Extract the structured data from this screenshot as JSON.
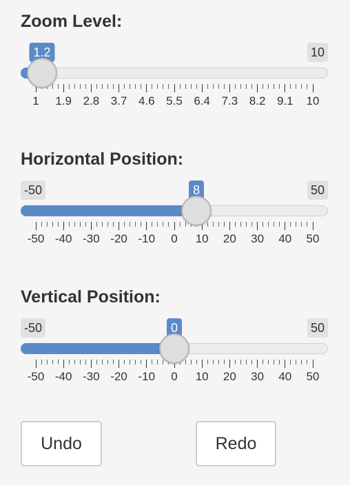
{
  "controls": [
    {
      "id": "zoom",
      "title": "Zoom Level:",
      "min": 1,
      "max": 10,
      "value": 1.2,
      "min_label": "",
      "max_label": "10",
      "value_label": "1.2",
      "ticks": [
        {
          "value": 1,
          "label": "1"
        },
        {
          "value": 1.9,
          "label": "1.9"
        },
        {
          "value": 2.8,
          "label": "2.8"
        },
        {
          "value": 3.7,
          "label": "3.7"
        },
        {
          "value": 4.6,
          "label": "4.6"
        },
        {
          "value": 5.5,
          "label": "5.5"
        },
        {
          "value": 6.4,
          "label": "6.4"
        },
        {
          "value": 7.3,
          "label": "7.3"
        },
        {
          "value": 8.2,
          "label": "8.2"
        },
        {
          "value": 9.1,
          "label": "9.1"
        },
        {
          "value": 10,
          "label": "10"
        }
      ],
      "minor_per_major": 4
    },
    {
      "id": "horizontal",
      "title": "Horizontal Position:",
      "min": -50,
      "max": 50,
      "value": 8,
      "min_label": "-50",
      "max_label": "50",
      "value_label": "8",
      "ticks": [
        {
          "value": -50,
          "label": "-50"
        },
        {
          "value": -40,
          "label": "-40"
        },
        {
          "value": -30,
          "label": "-30"
        },
        {
          "value": -20,
          "label": "-20"
        },
        {
          "value": -10,
          "label": "-10"
        },
        {
          "value": 0,
          "label": "0"
        },
        {
          "value": 10,
          "label": "10"
        },
        {
          "value": 20,
          "label": "20"
        },
        {
          "value": 30,
          "label": "30"
        },
        {
          "value": 40,
          "label": "40"
        },
        {
          "value": 50,
          "label": "50"
        }
      ],
      "minor_per_major": 4
    },
    {
      "id": "vertical",
      "title": "Vertical Position:",
      "min": -50,
      "max": 50,
      "value": 0,
      "min_label": "-50",
      "max_label": "50",
      "value_label": "0",
      "ticks": [
        {
          "value": -50,
          "label": "-50"
        },
        {
          "value": -40,
          "label": "-40"
        },
        {
          "value": -30,
          "label": "-30"
        },
        {
          "value": -20,
          "label": "-20"
        },
        {
          "value": -10,
          "label": "-10"
        },
        {
          "value": 0,
          "label": "0"
        },
        {
          "value": 10,
          "label": "10"
        },
        {
          "value": 20,
          "label": "20"
        },
        {
          "value": 30,
          "label": "30"
        },
        {
          "value": 40,
          "label": "40"
        },
        {
          "value": 50,
          "label": "50"
        }
      ],
      "minor_per_major": 4
    }
  ],
  "buttons": {
    "undo_label": "Undo",
    "redo_label": "Redo"
  },
  "colors": {
    "accent": "#5b8ac7",
    "background": "#f5f5f5",
    "text": "#333333"
  }
}
